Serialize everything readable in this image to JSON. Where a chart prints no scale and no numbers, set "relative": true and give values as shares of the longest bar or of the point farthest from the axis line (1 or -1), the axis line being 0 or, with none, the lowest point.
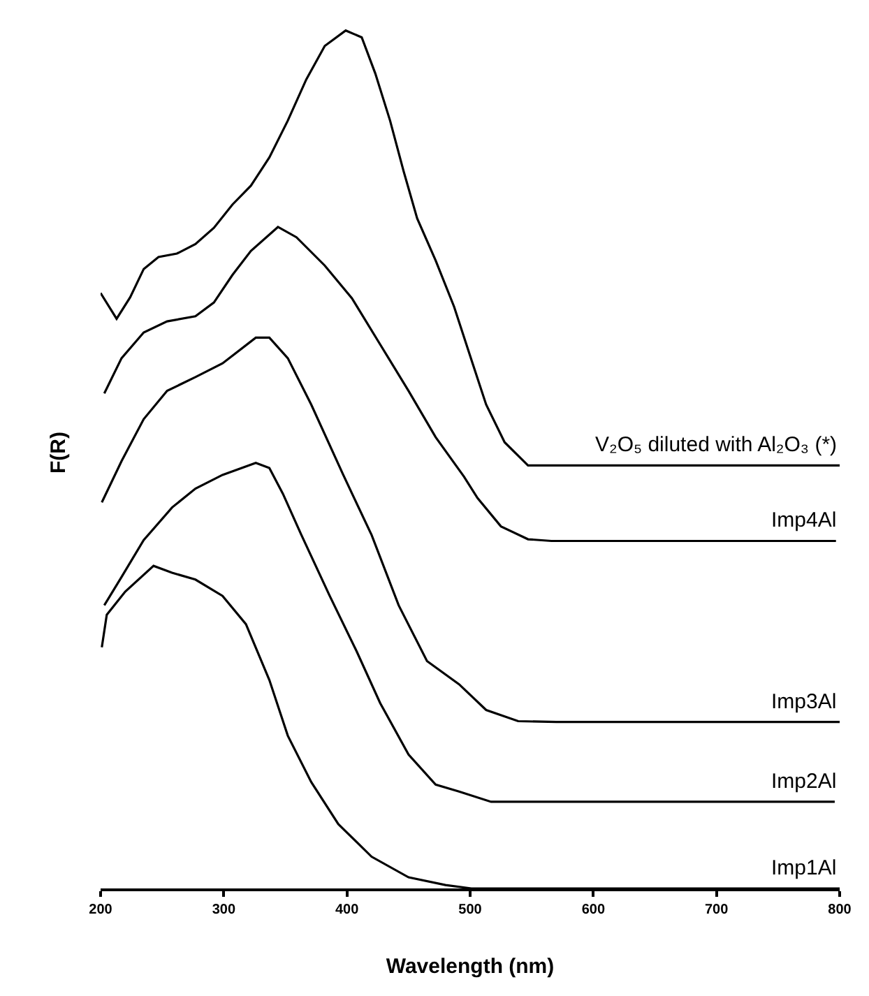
{
  "chart_data": {
    "type": "line",
    "xlabel": "Wavelength (nm)",
    "ylabel": "F(R)",
    "relative": true,
    "xlim": [
      200,
      800
    ],
    "xticks": [
      200,
      300,
      400,
      500,
      600,
      700,
      800
    ],
    "grid": false,
    "legend": false,
    "marker": "none",
    "line_style": "solid",
    "series": [
      {
        "name": "V₂O₅ diluted with Al₂O₃ (*)",
        "color": "#000000",
        "x": [
          200,
          213,
          224,
          235,
          247,
          262,
          277,
          292,
          307,
          322,
          337,
          352,
          367,
          382,
          399,
          412,
          423,
          435,
          446,
          457,
          472,
          487,
          502,
          513,
          528,
          547,
          800
        ],
        "values": [
          0.694,
          0.664,
          0.689,
          0.722,
          0.736,
          0.74,
          0.751,
          0.77,
          0.797,
          0.819,
          0.852,
          0.895,
          0.943,
          0.982,
          1.0,
          0.992,
          0.95,
          0.895,
          0.836,
          0.781,
          0.732,
          0.678,
          0.612,
          0.564,
          0.52,
          0.493,
          0.493
        ]
      },
      {
        "name": "Imp4Al",
        "color": "#000000",
        "x": [
          203,
          217,
          235,
          254,
          277,
          292,
          307,
          322,
          344,
          359,
          382,
          404,
          427,
          450,
          472,
          495,
          506,
          525,
          547,
          566,
          797
        ],
        "values": [
          0.577,
          0.618,
          0.648,
          0.661,
          0.667,
          0.683,
          0.715,
          0.743,
          0.771,
          0.759,
          0.726,
          0.688,
          0.634,
          0.58,
          0.526,
          0.48,
          0.455,
          0.422,
          0.407,
          0.405,
          0.405
        ]
      },
      {
        "name": "Imp3Al",
        "color": "#000000",
        "x": [
          201,
          217,
          235,
          254,
          277,
          299,
          326,
          337,
          352,
          371,
          397,
          420,
          442,
          465,
          491,
          513,
          539,
          570,
          800
        ],
        "values": [
          0.45,
          0.498,
          0.547,
          0.58,
          0.596,
          0.612,
          0.642,
          0.642,
          0.618,
          0.564,
          0.482,
          0.412,
          0.33,
          0.265,
          0.238,
          0.208,
          0.195,
          0.194,
          0.194
        ]
      },
      {
        "name": "Imp2Al",
        "color": "#000000",
        "x": [
          203,
          217,
          235,
          258,
          277,
          299,
          326,
          337,
          348,
          363,
          386,
          408,
          427,
          450,
          472,
          491,
          517,
          796
        ],
        "values": [
          0.33,
          0.363,
          0.406,
          0.444,
          0.466,
          0.482,
          0.496,
          0.49,
          0.46,
          0.412,
          0.341,
          0.276,
          0.216,
          0.156,
          0.121,
          0.113,
          0.101,
          0.101
        ]
      },
      {
        "name": "Imp1Al",
        "color": "#000000",
        "x": [
          201,
          205,
          220,
          243,
          258,
          277,
          299,
          318,
          337,
          352,
          371,
          393,
          420,
          450,
          480,
          501,
          800
        ],
        "values": [
          0.281,
          0.319,
          0.346,
          0.376,
          0.368,
          0.36,
          0.341,
          0.308,
          0.243,
          0.178,
          0.124,
          0.075,
          0.037,
          0.013,
          0.004,
          0.0,
          0.0
        ]
      }
    ]
  }
}
